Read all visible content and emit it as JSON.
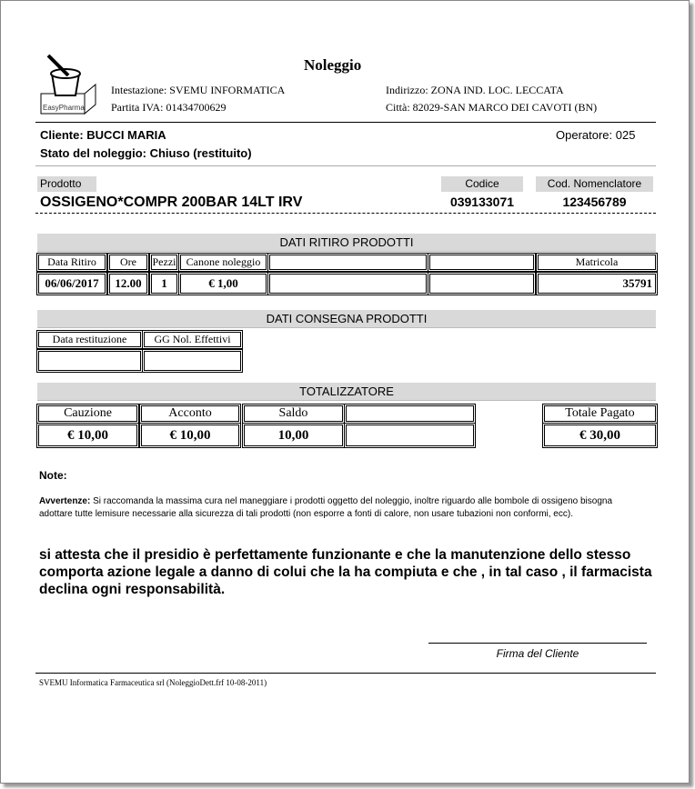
{
  "title": "Noleggio",
  "logo": {
    "text": "EasyPharma"
  },
  "company": {
    "intestazione": "Intestazione: SVEMU INFORMATICA",
    "partita_iva": "Partita IVA:  01434700629",
    "indirizzo": "Indirizzo: ZONA IND. LOC. LECCATA",
    "citta": "Città: 82029-SAN MARCO DEI CAVOTI (BN)"
  },
  "client": {
    "cliente": "Cliente: BUCCI MARIA",
    "stato": "Stato del noleggio: Chiuso (restituito)",
    "operatore": "Operatore: 025"
  },
  "product": {
    "prodotto_label": "Prodotto",
    "codice_label": "Codice",
    "nomenclatore_label": "Cod. Nomenclatore",
    "name": "OSSIGENO*COMPR 200BAR 14LT IRV",
    "codice": "039133071",
    "nomenclatore": "123456789"
  },
  "ritiro": {
    "title": "DATI RITIRO PRODOTTI",
    "headers": [
      "Data Ritiro",
      "Ore",
      "Pezzi",
      "Canone noleggio",
      "",
      "",
      "Matricola"
    ],
    "values": [
      "06/06/2017",
      "12.00",
      "1",
      "€  1,00",
      "",
      "",
      "35791"
    ]
  },
  "consegna": {
    "title": "DATI CONSEGNA PRODOTTI",
    "headers": [
      "Data restituzione",
      "GG Nol. Effettivi"
    ],
    "values": [
      "",
      ""
    ]
  },
  "totalizzatore": {
    "title": "TOTALIZZATORE",
    "headers": [
      "Cauzione",
      "Acconto",
      "Saldo",
      "",
      "Totale Pagato"
    ],
    "values": [
      "€  10,00",
      "€  10,00",
      "10,00",
      "",
      "€  30,00"
    ]
  },
  "note_label": "Note:",
  "avvertenze_label": "Avvertenze:",
  "avvertenze_text": " Si raccomanda la massima cura nel maneggiare i prodotti oggetto del noleggio, inoltre riguardo alle bombole di ossigeno bisogna adottare tutte lemisure necessarie alla sicurezza di tali prodotti (non esporre a fonti di calore, non usare tubazioni non conformi, ecc).",
  "attestazione": "si attesta che il presidio è perfettamente funzionante e che la manutenzione dello stesso comporta azione legale a danno di colui che la ha compiuta e che , in tal caso , il farmacista declina ogni responsabilità.",
  "firma": "Firma del Cliente",
  "footer": "SVEMU Informatica Farmaceutica srl  (NoleggioDett.frf 10-08-2011)"
}
